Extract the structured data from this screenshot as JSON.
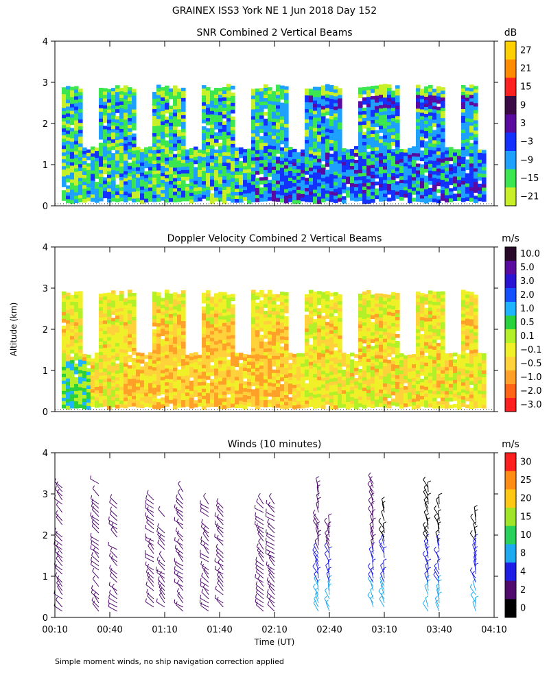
{
  "header": {
    "title": "GRAINEX ISS3 York NE    1 Jun 2018 Day 152"
  },
  "shared": {
    "ylabel": "Altitude (km)",
    "xlabel": "Time (UT)",
    "time_ticks": [
      "00:10",
      "00:40",
      "01:10",
      "01:40",
      "02:10",
      "02:40",
      "03:10",
      "03:40",
      "04:10"
    ],
    "alt_ticks": [
      "0",
      "1",
      "2",
      "3",
      "4"
    ]
  },
  "panels": {
    "snr": {
      "title": "SNR Combined 2 Vertical Beams",
      "unit": "dB",
      "colorbar_labels": [
        "27",
        "21",
        "15",
        "9",
        "3",
        "−3",
        "−9",
        "−15",
        "−21"
      ],
      "colorbar_colors": [
        "#ffd000",
        "#ff8c00",
        "#ff2020",
        "#3c0a46",
        "#5a0aa0",
        "#1432ff",
        "#1ea0ff",
        "#3ce650",
        "#c8f028"
      ]
    },
    "doppler": {
      "title": "Doppler Velocity Combined 2 Vertical Beams",
      "unit": "m/s",
      "colorbar_labels": [
        "10.0",
        "5.0",
        "3.0",
        "2.0",
        "1.0",
        "0.5",
        "0.1",
        "−0.1",
        "−0.5",
        "−1.0",
        "−2.0",
        "−3.0"
      ],
      "colorbar_colors": [
        "#2a0a2a",
        "#5a0aa0",
        "#2814d2",
        "#1450ff",
        "#1eb4ff",
        "#28d23c",
        "#b4f028",
        "#f0f028",
        "#ffd23c",
        "#ffa028",
        "#ff6414",
        "#ff1e1e"
      ]
    },
    "winds": {
      "title": "Winds (10 minutes)",
      "unit": "m/s",
      "colorbar_labels": [
        "30",
        "25",
        "20",
        "15",
        "10",
        "8",
        "4",
        "2",
        "0"
      ],
      "colorbar_colors": [
        "#ff1e1e",
        "#ff8c14",
        "#ffc814",
        "#a0e628",
        "#28d25a",
        "#1eaaf0",
        "#1e1ee6",
        "#500a6e",
        "#000000"
      ]
    }
  },
  "footer": {
    "note": "Simple moment winds, no ship navigation correction applied"
  },
  "chart_data": [
    {
      "type": "heatmap",
      "title": "SNR Combined 2 Vertical Beams",
      "xlabel": "",
      "ylabel": "Altitude (km)",
      "x_range": [
        "00:10",
        "04:10"
      ],
      "ylim": [
        0,
        4
      ],
      "colorbar_unit": "dB",
      "colorbar_range": [
        -21,
        27
      ],
      "data_top_km": 2.9,
      "grid": false
    },
    {
      "type": "heatmap",
      "title": "Doppler Velocity Combined 2 Vertical Beams",
      "xlabel": "",
      "ylabel": "Altitude (km)",
      "x_range": [
        "00:10",
        "04:10"
      ],
      "ylim": [
        0,
        4
      ],
      "colorbar_unit": "m/s",
      "colorbar_range": [
        -3.0,
        10.0
      ],
      "data_top_km": 2.9,
      "grid": false
    },
    {
      "type": "scatter",
      "title": "Winds (10 minutes)",
      "xlabel": "Time (UT)",
      "ylabel": "Altitude (km)",
      "x_range": [
        "00:10",
        "04:10"
      ],
      "ylim": [
        0,
        4
      ],
      "colorbar_unit": "m/s",
      "colorbar_range": [
        0,
        30
      ],
      "profile_times": [
        "00:14",
        "00:34",
        "00:44",
        "01:04",
        "01:10",
        "01:20",
        "01:34",
        "01:42",
        "02:04",
        "02:10",
        "02:34",
        "02:40",
        "03:04",
        "03:10",
        "03:34",
        "03:40",
        "04:00"
      ],
      "grid": false
    }
  ]
}
